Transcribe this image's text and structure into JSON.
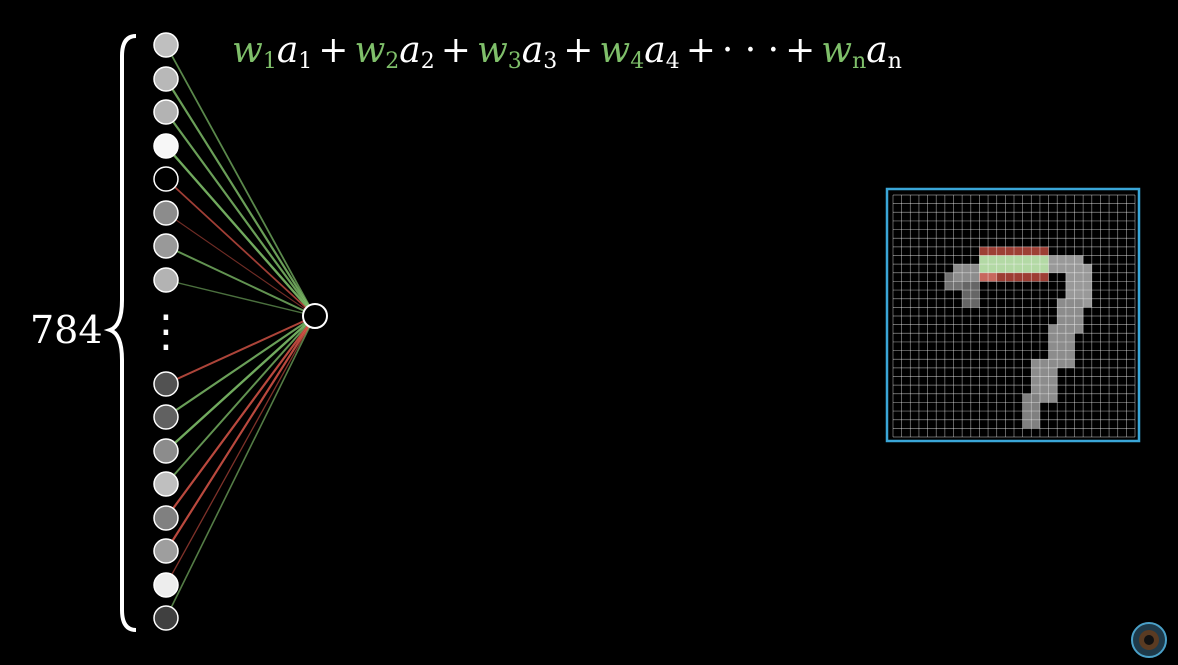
{
  "layer": {
    "count_label": "784",
    "neuron_activations": [
      0.75,
      0.72,
      0.7,
      0.97,
      0.0,
      0.55,
      0.6,
      0.7,
      0.32,
      0.38,
      0.55,
      0.75,
      0.5,
      0.62,
      0.93,
      0.25
    ],
    "ellipsis": "⋮"
  },
  "connections": {
    "weight_colors": {
      "positive": "#7fbf6a",
      "negative": "#e0584a"
    },
    "weights": [
      0.6,
      0.8,
      0.8,
      0.9,
      -0.6,
      -0.25,
      0.7,
      0.4,
      -0.7,
      0.8,
      0.9,
      0.7,
      -0.8,
      -0.8,
      -0.35,
      0.5
    ]
  },
  "formula": {
    "terms": [
      {
        "w": "w",
        "wsub": "1",
        "a": "a",
        "asub": "1"
      },
      {
        "w": "w",
        "wsub": "2",
        "a": "a",
        "asub": "2"
      },
      {
        "w": "w",
        "wsub": "3",
        "a": "a",
        "asub": "3"
      },
      {
        "w": "w",
        "wsub": "4",
        "a": "a",
        "asub": "4"
      }
    ],
    "plus": "+",
    "dots": "· · ·",
    "last": {
      "w": "w",
      "wsub": "n",
      "a": "a",
      "asub": "n"
    }
  },
  "digit_grid": {
    "rows": 28,
    "cols": 28,
    "border_color": "#3aa6d8",
    "digit_strokes_description": "seven",
    "highlight_colors": {
      "red": "#e0584a",
      "green": "#b6e0a6"
    }
  }
}
